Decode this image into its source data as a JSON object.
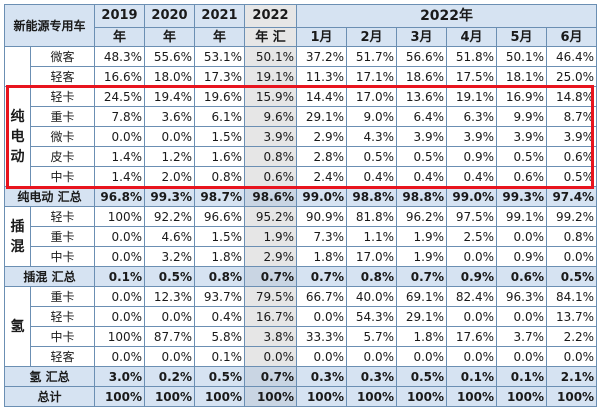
{
  "header": {
    "category_label": "新能源专用车",
    "years": [
      "2019\n年",
      "2020\n年",
      "2021\n年",
      "2022\n年 汇"
    ],
    "year_top": [
      "2019",
      "2020",
      "2021",
      "2022"
    ],
    "year_bottom": [
      "年",
      "年",
      "年",
      "年 汇"
    ],
    "month_group": "2022年",
    "months": [
      "1月",
      "2月",
      "3月",
      "4月",
      "5月",
      "6月"
    ]
  },
  "groups": [
    {
      "label": "",
      "rows": [
        {
          "sub": "微客",
          "v": [
            "48.3%",
            "55.6%",
            "53.1%",
            "50.1%",
            "37.2%",
            "51.7%",
            "56.6%",
            "51.8%",
            "50.1%",
            "46.4%"
          ]
        },
        {
          "sub": "轻客",
          "v": [
            "16.6%",
            "18.0%",
            "17.3%",
            "19.1%",
            "11.3%",
            "17.1%",
            "18.6%",
            "17.5%",
            "18.1%",
            "25.0%"
          ]
        }
      ]
    },
    {
      "label": "纯\n电\n动",
      "rows": [
        {
          "sub": "轻卡",
          "v": [
            "24.5%",
            "19.4%",
            "19.6%",
            "15.9%",
            "14.4%",
            "17.0%",
            "13.6%",
            "19.1%",
            "16.9%",
            "14.8%"
          ]
        },
        {
          "sub": "重卡",
          "v": [
            "7.8%",
            "3.6%",
            "6.1%",
            "9.6%",
            "29.1%",
            "9.0%",
            "6.4%",
            "6.3%",
            "9.9%",
            "8.7%"
          ]
        },
        {
          "sub": "微卡",
          "v": [
            "0.0%",
            "0.0%",
            "1.5%",
            "3.9%",
            "2.9%",
            "4.3%",
            "3.9%",
            "3.9%",
            "3.9%",
            "3.9%"
          ]
        },
        {
          "sub": "皮卡",
          "v": [
            "1.4%",
            "1.2%",
            "1.6%",
            "0.8%",
            "2.8%",
            "0.5%",
            "0.5%",
            "0.9%",
            "0.5%",
            "0.6%"
          ]
        },
        {
          "sub": "中卡",
          "v": [
            "1.4%",
            "2.0%",
            "0.8%",
            "0.6%",
            "2.4%",
            "0.4%",
            "0.4%",
            "0.4%",
            "0.6%",
            "0.5%"
          ]
        }
      ]
    }
  ],
  "bev_total": {
    "label": "纯电动 汇总",
    "v": [
      "96.8%",
      "99.3%",
      "98.7%",
      "98.6%",
      "99.0%",
      "98.8%",
      "98.8%",
      "99.0%",
      "99.3%",
      "97.4%"
    ]
  },
  "phev": {
    "label": "插\n混",
    "rows": [
      {
        "sub": "轻卡",
        "v": [
          "100%",
          "92.2%",
          "96.6%",
          "95.2%",
          "90.9%",
          "81.8%",
          "96.2%",
          "97.5%",
          "99.1%",
          "99.2%"
        ]
      },
      {
        "sub": "重卡",
        "v": [
          "0.0%",
          "4.6%",
          "1.5%",
          "1.9%",
          "7.3%",
          "1.1%",
          "1.9%",
          "2.5%",
          "0.0%",
          "0.8%"
        ]
      },
      {
        "sub": "中卡",
        "v": [
          "0.0%",
          "3.2%",
          "1.8%",
          "2.9%",
          "1.8%",
          "17.0%",
          "1.9%",
          "0.0%",
          "0.9%",
          "0.0%"
        ]
      }
    ]
  },
  "phev_total": {
    "label": "插混 汇总",
    "v": [
      "0.1%",
      "0.5%",
      "0.8%",
      "0.7%",
      "0.7%",
      "0.8%",
      "0.7%",
      "0.9%",
      "0.6%",
      "0.5%"
    ]
  },
  "fcev": {
    "label": "氢",
    "rows": [
      {
        "sub": "重卡",
        "v": [
          "0.0%",
          "12.3%",
          "93.7%",
          "79.5%",
          "66.7%",
          "40.0%",
          "69.1%",
          "82.4%",
          "96.3%",
          "84.1%"
        ]
      },
      {
        "sub": "轻卡",
        "v": [
          "0.0%",
          "0.0%",
          "0.4%",
          "16.7%",
          "0.0%",
          "54.3%",
          "29.1%",
          "0.0%",
          "0.0%",
          "13.7%"
        ]
      },
      {
        "sub": "中卡",
        "v": [
          "100%",
          "87.7%",
          "5.8%",
          "3.8%",
          "33.3%",
          "5.7%",
          "1.8%",
          "17.6%",
          "3.7%",
          "2.2%"
        ]
      },
      {
        "sub": "轻客",
        "v": [
          "0.0%",
          "0.0%",
          "0.1%",
          "0.0%",
          "0.0%",
          "0.0%",
          "0.0%",
          "0.0%",
          "0.0%",
          "0.0%"
        ]
      }
    ]
  },
  "fcev_total": {
    "label": "氢 汇总",
    "v": [
      "3.0%",
      "0.2%",
      "0.5%",
      "0.7%",
      "0.3%",
      "0.3%",
      "0.5%",
      "0.1%",
      "0.1%",
      "2.1%"
    ]
  },
  "grand_total": {
    "label": "总计",
    "v": [
      "100%",
      "100%",
      "100%",
      "100%",
      "100%",
      "100%",
      "100%",
      "100%",
      "100%",
      "100%"
    ]
  },
  "colors": {
    "header_bg": "#d6e3f2",
    "border": "#6b8fb3",
    "highlight": "#e8141e",
    "col2022_bg": "#e6e6e6"
  }
}
